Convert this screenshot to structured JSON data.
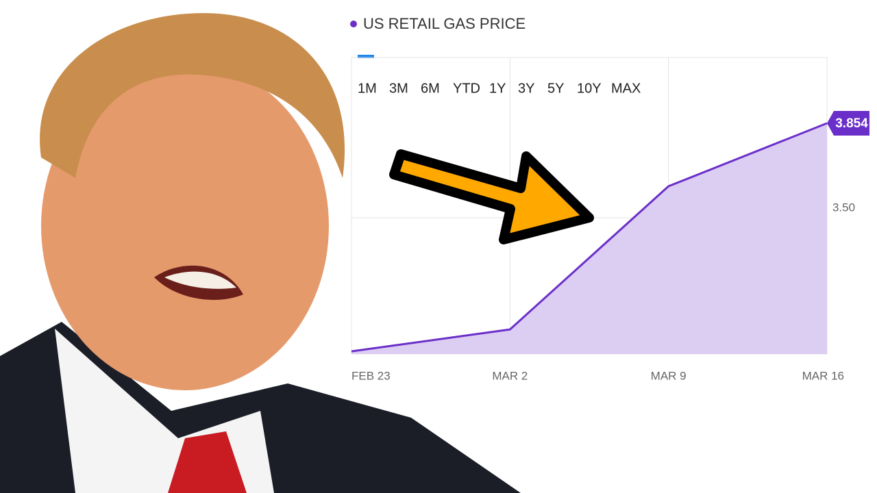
{
  "chart_data": {
    "type": "area",
    "series": [
      {
        "name": "US RETAIL GAS PRICE",
        "color": "#6a2fc9",
        "fill": "#dccdf2",
        "values": [
          3.0,
          3.082,
          3.618,
          3.854
        ]
      }
    ],
    "categories": [
      "FEB 23",
      "MAR 2",
      "MAR 9",
      "MAR 16"
    ],
    "ylim": [
      2.99,
      4.1
    ],
    "yticks": [
      {
        "value": 3.5,
        "label": "3.50"
      }
    ],
    "grid": true,
    "range_buttons": [
      "1M",
      "3M",
      "6M",
      "YTD",
      "1Y",
      "3Y",
      "5Y",
      "10Y",
      "MAX"
    ]
  }
}
